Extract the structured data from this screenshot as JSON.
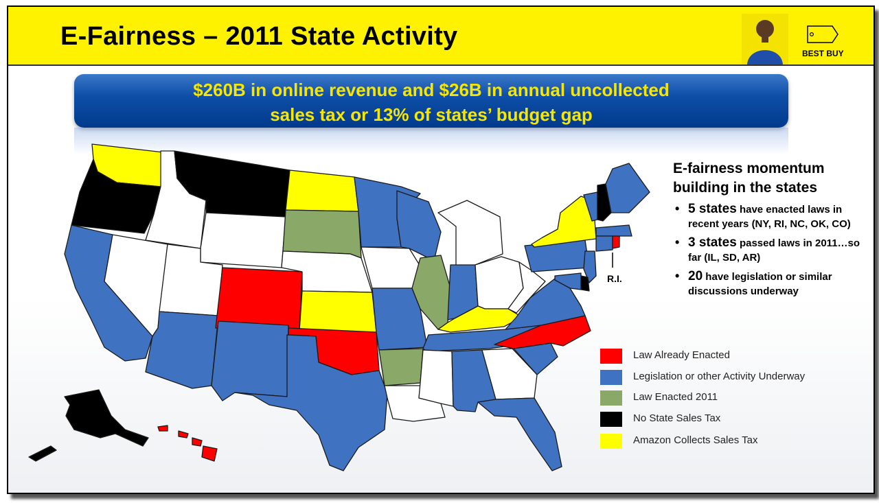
{
  "header": {
    "title": "E-Fairness – 2011 State Activity",
    "logo_text": "BEST BUY"
  },
  "banner": {
    "line1": "$260B in online revenue and $26B in annual uncollected",
    "line2": "sales tax or 13% of states’ budget gap"
  },
  "colors": {
    "title_bar": "#fff200",
    "banner": "#0f4fa8",
    "banner_text": "#f7e600",
    "enacted": "#ff0000",
    "underway": "#3f72c0",
    "enacted_2011": "#8aa868",
    "no_tax": "#000000",
    "amazon": "#ffff00",
    "none": "#ffffff"
  },
  "map": {
    "label_ri": "R.I.",
    "states": {
      "WA": "amazon",
      "OR": "no_tax",
      "CA": "underway",
      "NV": "none",
      "ID": "none",
      "MT": "no_tax",
      "WY": "none",
      "UT": "none",
      "AZ": "underway",
      "CO": "enacted",
      "NM": "underway",
      "ND": "amazon",
      "SD": "enacted_2011",
      "NE": "none",
      "KS": "amazon",
      "OK": "enacted",
      "TX": "underway",
      "MN": "underway",
      "IA": "none",
      "MO": "underway",
      "AR": "enacted_2011",
      "LA": "none",
      "WI": "underway",
      "IL": "enacted_2011",
      "MI": "none",
      "IN": "underway",
      "OH": "none",
      "KY": "amazon",
      "TN": "underway",
      "MS": "none",
      "AL": "underway",
      "GA": "none",
      "FL": "underway",
      "SC": "underway",
      "NC": "enacted",
      "VA": "underway",
      "WV": "none",
      "PA": "underway",
      "NY": "amazon",
      "VT": "underway",
      "NH": "no_tax",
      "ME": "underway",
      "MA": "underway",
      "CT": "underway",
      "RI": "enacted",
      "NJ": "underway",
      "DE": "no_tax",
      "MD": "underway",
      "AK": "no_tax",
      "HI": "enacted"
    }
  },
  "sidebar": {
    "heading": "E-fairness momentum building in the states",
    "bullets": [
      {
        "strong": "5 states",
        "text": " have enacted laws in recent years (NY, RI, NC, OK, CO)"
      },
      {
        "strong": "3 states",
        "text": " passed laws in 2011…so far (IL, SD, AR)"
      },
      {
        "strong": "20",
        "text": " have legislation or similar discussions underway"
      }
    ],
    "bullet_glyph": "•"
  },
  "legend": [
    {
      "key": "enacted",
      "label": "Law Already Enacted",
      "color": "#ff0000"
    },
    {
      "key": "underway",
      "label": "Legislation or other Activity Underway",
      "color": "#3f72c0"
    },
    {
      "key": "enacted_2011",
      "label": "Law Enacted 2011",
      "color": "#8aa868"
    },
    {
      "key": "no_tax",
      "label": "No State Sales Tax",
      "color": "#000000"
    },
    {
      "key": "amazon",
      "label": "Amazon Collects Sales Tax",
      "color": "#ffff00"
    }
  ]
}
